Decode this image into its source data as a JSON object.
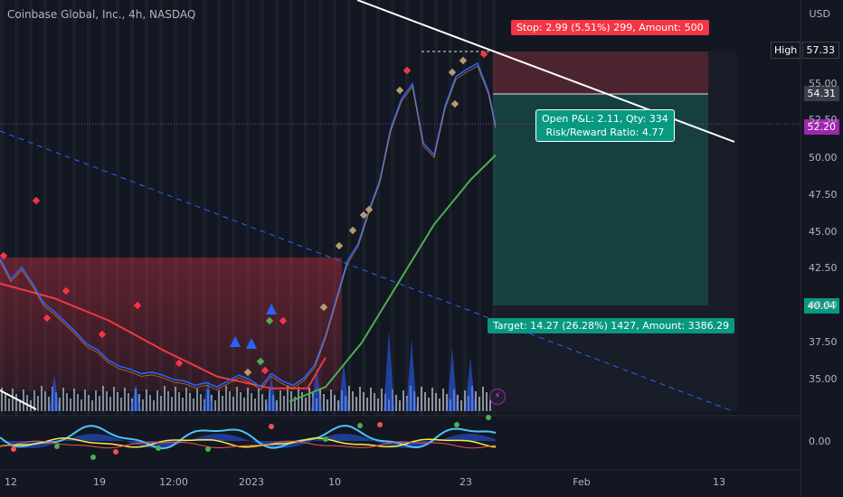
{
  "header": {
    "title": "Coinbase Global, Inc., 4h, NASDAQ",
    "currency": "USD"
  },
  "price_tags": {
    "high_label": "High",
    "high_value": "57.33",
    "current_value": "54.31",
    "last_value": "52.20",
    "stop_value": "40.04"
  },
  "annotations": {
    "stop": "Stop: 2.99 (5.51%) 299, Amount: 500",
    "target": "Target: 14.27 (26.28%) 1427, Amount: 3386.29",
    "pnl_line1": "Open P&L: 2.11, Qty: 334",
    "pnl_line2": "Risk/Reward Ratio: 4.77"
  },
  "colors": {
    "background": "#131722",
    "stop_zone": "#f23645",
    "target_zone": "#089981",
    "candle_blue": "#2962ff",
    "ma_red": "#f23645",
    "ma_green": "#4caf50",
    "trendline": "#ffffff",
    "dashed_line": "#2962ff"
  },
  "chart_data": {
    "type": "line",
    "y_axis": {
      "ticks": [
        "55.00",
        "52.50",
        "50.00",
        "47.50",
        "45.00",
        "42.50",
        "40.00",
        "37.50",
        "35.00",
        "0.00"
      ],
      "scale": "linear"
    },
    "x_axis": {
      "ticks": [
        "12",
        "19",
        "12:00",
        "2023",
        "10",
        "23",
        "Feb",
        "13"
      ]
    },
    "series": [
      {
        "name": "",
        "x": [
          0,
          12,
          24,
          36,
          48,
          60,
          72,
          84,
          96,
          108,
          120,
          132,
          144,
          156,
          168,
          180,
          192,
          204,
          216,
          228,
          240,
          252,
          264,
          276,
          288,
          300,
          312,
          324,
          336,
          348,
          360,
          372,
          384,
          396,
          408,
          420,
          432,
          444,
          456,
          468,
          480,
          492,
          504,
          516,
          528,
          540,
          548
        ],
        "values": [
          43.2,
          41.8,
          42.6,
          41.5,
          40.2,
          39.6,
          38.9,
          38.2,
          37.4,
          37.0,
          36.3,
          35.9,
          35.7,
          35.4,
          35.5,
          35.3,
          35.0,
          34.9,
          34.6,
          34.8,
          34.5,
          34.9,
          35.3,
          35.0,
          34.5,
          35.4,
          34.9,
          34.6,
          35.1,
          36.0,
          38.0,
          40.5,
          43.0,
          44.2,
          46.5,
          48.5,
          52.0,
          54.0,
          55.0,
          51.0,
          50.2,
          53.5,
          55.5,
          56.0,
          56.4,
          54.5,
          52.2
        ]
      }
    ],
    "moving_averages": [
      {
        "color": "red",
        "x": [
          0,
          60,
          120,
          180,
          240,
          300,
          340,
          360
        ],
        "values": [
          41.5,
          40.5,
          39.0,
          37.0,
          35.2,
          34.4,
          34.4,
          36.5
        ]
      },
      {
        "color": "green",
        "x": [
          320,
          360,
          400,
          440,
          480,
          520,
          548
        ],
        "values": [
          33.5,
          34.5,
          37.5,
          41.5,
          45.5,
          48.5,
          50.2
        ]
      }
    ],
    "position": {
      "entry": 54.31,
      "stop": 57.33,
      "target": 40.04,
      "last": 52.2
    }
  }
}
